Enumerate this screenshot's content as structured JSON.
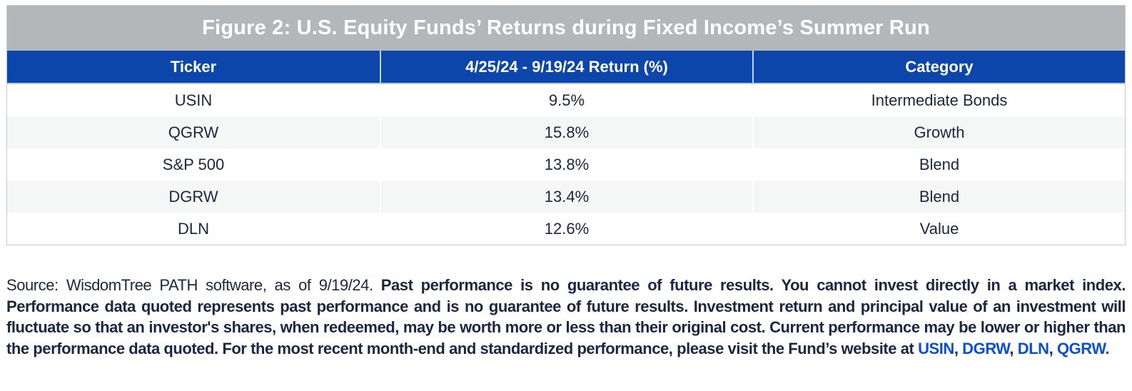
{
  "figure": {
    "title": "Figure 2: U.S. Equity Funds’ Returns during Fixed Income’s Summer Run"
  },
  "table": {
    "columns": [
      "Ticker",
      "4/25/24 - 9/19/24 Return (%)",
      "Category"
    ],
    "rows": [
      {
        "ticker": "USIN",
        "return": "9.5%",
        "category": "Intermediate Bonds"
      },
      {
        "ticker": "QGRW",
        "return": "15.8%",
        "category": "Growth"
      },
      {
        "ticker": "S&P 500",
        "return": "13.8%",
        "category": "Blend"
      },
      {
        "ticker": "DGRW",
        "return": "13.4%",
        "category": "Blend"
      },
      {
        "ticker": "DLN",
        "return": "12.6%",
        "category": "Value"
      }
    ]
  },
  "disclaimer": {
    "source_text": "Source: WisdomTree PATH software, as of 9/19/24. ",
    "bold_text": "Past performance is no guarantee of future results. You cannot invest directly in a market index. Performance data quoted represents past performance and is no guarantee of future results. Investment return and principal value of an investment will fluctuate so that an investor's shares, when redeemed, may be worth more or less than their original cost. Current performance may be lower or higher than the performance data quoted. For the most recent month-end and standardized performance, please visit the Fund’s website at ",
    "links": [
      "USIN",
      "DGRW",
      "DLN",
      "QGRW"
    ],
    "separator": ", ",
    "final_period": "."
  },
  "colors": {
    "title_bar_bg": "#b3b7ba",
    "header_bg": "#0c46aa",
    "body_text": "#1a2742",
    "alt_row_bg": "#f5f6f6",
    "link_blue": "#0b4fd6",
    "border": "#c6cacd"
  }
}
